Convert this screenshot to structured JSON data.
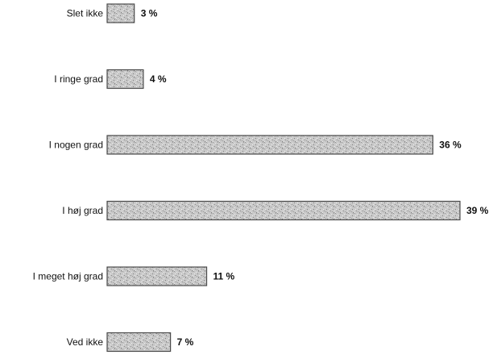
{
  "chart_data": {
    "type": "bar",
    "orientation": "horizontal",
    "categories": [
      "Slet ikke",
      "I ringe grad",
      "I nogen grad",
      "I høj grad",
      "I meget høj grad",
      "Ved ikke"
    ],
    "values": [
      3,
      4,
      36,
      39,
      11,
      7
    ],
    "value_labels": [
      "3 %",
      "4 %",
      "36 %",
      "39 %",
      "11 %",
      "7 %"
    ],
    "unit": "%",
    "xlim": [
      0,
      39
    ],
    "grid": false,
    "legend": "none"
  },
  "colors": {
    "bar_fill": "#c4c4c4",
    "bar_stroke": "#4a4a4a",
    "text": "#111111"
  }
}
